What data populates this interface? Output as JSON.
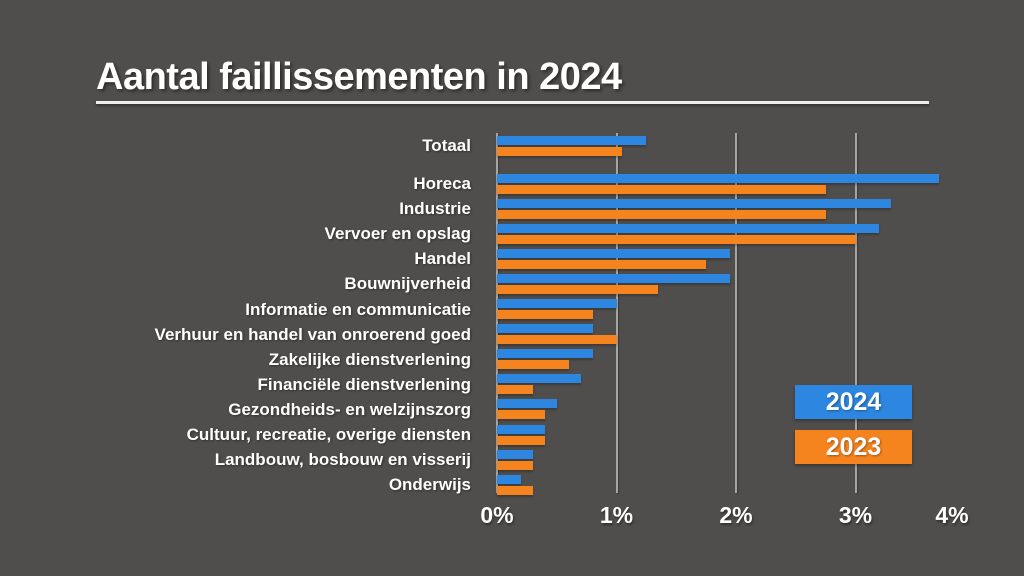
{
  "title": "Aantal faillissementen in 2024",
  "colors": {
    "background": "#504e4c",
    "bar_2024": "#2d86e0",
    "bar_2023": "#f5831e",
    "gridline": "#a6a5a2",
    "text": "#ffffff"
  },
  "legend": {
    "items": [
      {
        "label": "2024",
        "color": "#2d86e0"
      },
      {
        "label": "2023",
        "color": "#f5831e"
      }
    ]
  },
  "chart_data": {
    "type": "bar",
    "orientation": "horizontal",
    "title": "Aantal faillissementen in 2024",
    "unit": "%",
    "categories": [
      "Totaal",
      "Horeca",
      "Industrie",
      "Vervoer en opslag",
      "Handel",
      "Bouwnijverheid",
      "Informatie en communicatie",
      "Verhuur en handel van onroerend goed",
      "Zakelijke dienstverlening",
      "Financiële dienstverlening",
      "Gezondheids- en welzijnszorg",
      "Cultuur, recreatie, overige diensten",
      "Landbouw, bosbouw en visserij",
      "Onderwijs"
    ],
    "series": [
      {
        "name": "2024",
        "color": "#2d86e0",
        "values": [
          1.25,
          3.7,
          3.3,
          3.2,
          1.95,
          1.95,
          1.0,
          0.8,
          0.8,
          0.7,
          0.5,
          0.4,
          0.3,
          0.2
        ]
      },
      {
        "name": "2023",
        "color": "#f5831e",
        "values": [
          1.05,
          2.75,
          2.75,
          3.0,
          1.75,
          1.35,
          0.8,
          1.0,
          0.6,
          0.3,
          0.4,
          0.4,
          0.3,
          0.3
        ]
      }
    ],
    "x_ticks": [
      "0%",
      "1%",
      "2%",
      "3%",
      "4%"
    ],
    "xlim": [
      0,
      4
    ],
    "grid": "vertical lines at 0%, 1%, 2%, 3%",
    "legend_position": "middle-right"
  }
}
